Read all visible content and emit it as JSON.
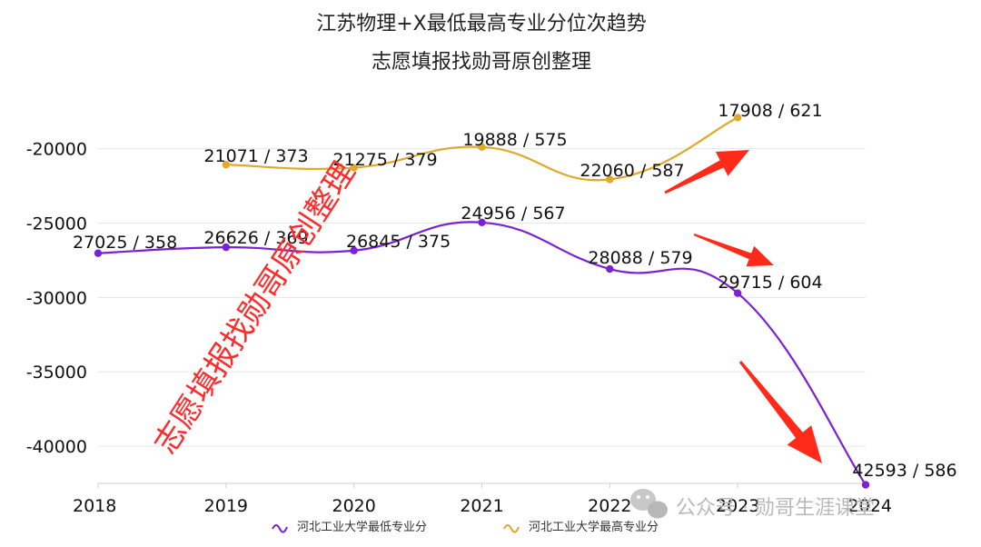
{
  "chart_data": {
    "type": "line",
    "title": "江苏物理+X最低最高专业分位次趋势",
    "subtitle": "志愿填报找勋哥原创整理",
    "categories": [
      "2018",
      "2019",
      "2020",
      "2021",
      "2022",
      "2023",
      "2024"
    ],
    "ylim": [
      -42500,
      -15500
    ],
    "yticks": [
      -20000,
      -25000,
      -30000,
      -35000,
      -40000
    ],
    "ytick_labels": [
      "-20000",
      "-25000",
      "-30000",
      "-35000",
      "-40000"
    ],
    "grid": true,
    "legend_position": "bottom-center",
    "series": [
      {
        "name": "河北工业大学最低专业分",
        "color": "#7b20d4",
        "values": [
          -27025,
          -26626,
          -26845,
          -24956,
          -28088,
          -29715,
          -42593
        ],
        "labels": [
          "27025 / 358",
          "26626 / 369",
          "26845 / 375",
          "24956 / 567",
          "28088 / 579",
          "29715 / 604",
          "42593 / 586"
        ]
      },
      {
        "name": "河北工业大学最高专业分",
        "color": "#e0a92a",
        "values": [
          null,
          -21071,
          -21275,
          -19888,
          -22060,
          -17908,
          null
        ],
        "labels": [
          null,
          "21071 / 373",
          "21275 / 379",
          "19888 / 575",
          "22060 / 587",
          "17908 / 621",
          null
        ]
      }
    ],
    "annotations": {
      "watermark": "志愿填报找勋哥原创整理",
      "brand": "公众号 · 勋哥生涯课堂"
    }
  }
}
